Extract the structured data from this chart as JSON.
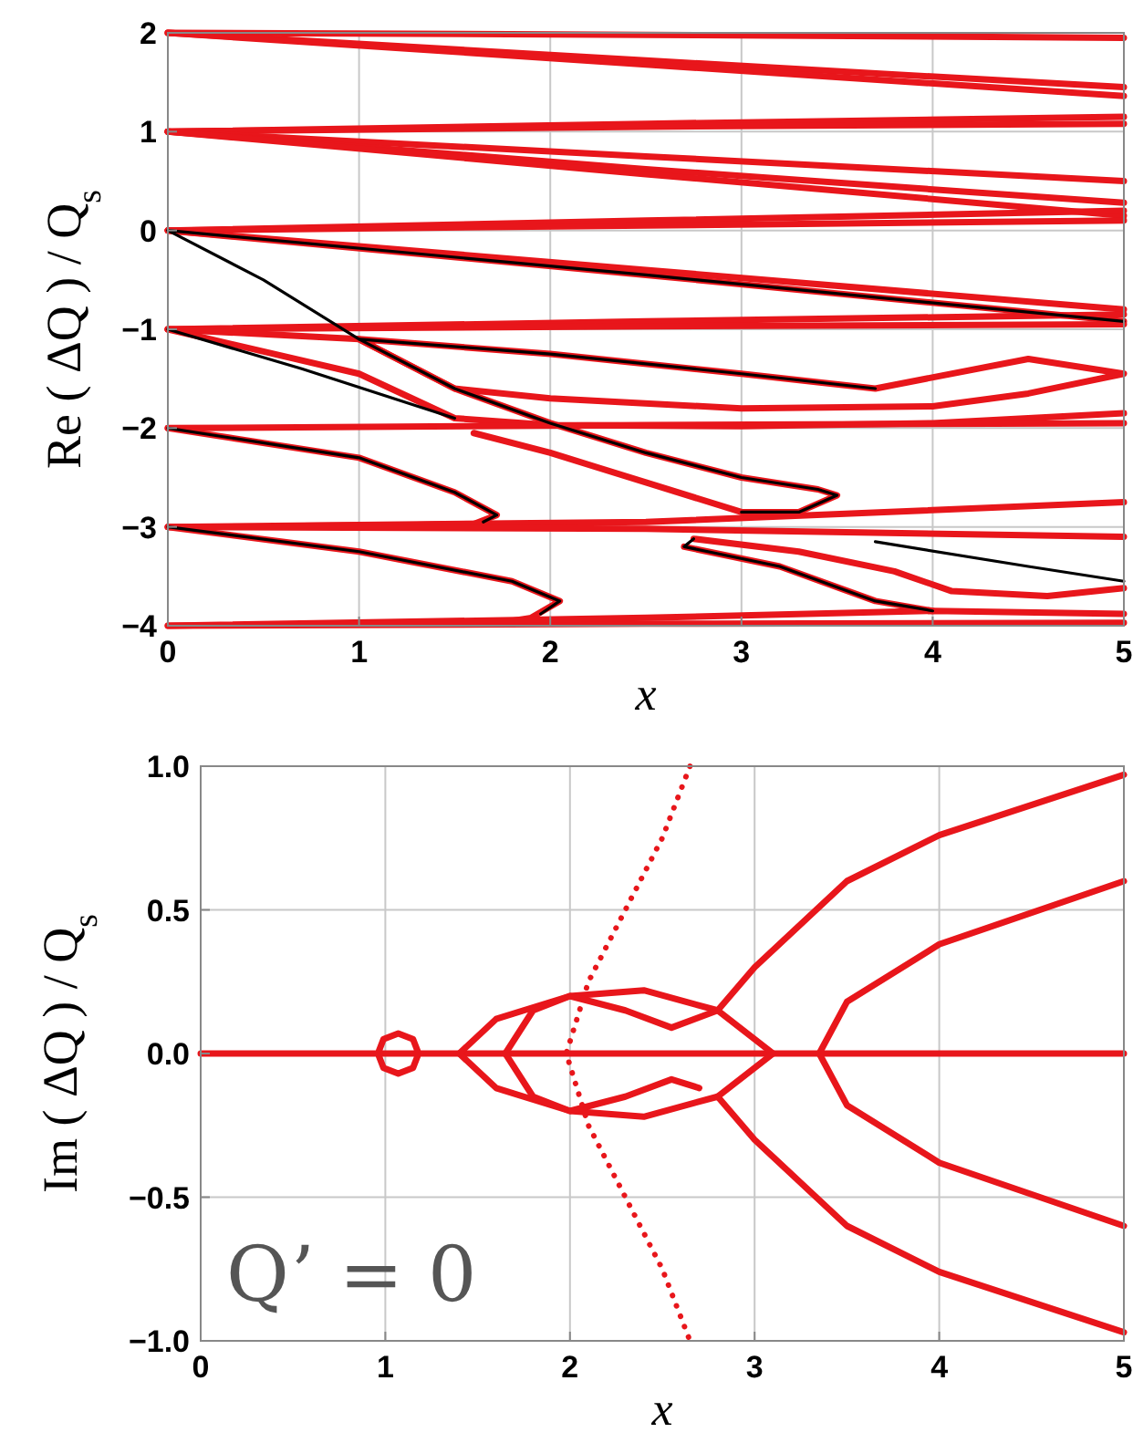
{
  "chart_data": [
    {
      "type": "line",
      "xlabel": "x",
      "ylabel": "Re ( ΔQ ) / Q$_{s}$",
      "xlim": [
        0,
        5
      ],
      "ylim": [
        -4,
        2
      ],
      "xticks": [
        0,
        1,
        2,
        3,
        4,
        5
      ],
      "yticks": [
        -4,
        -3,
        -2,
        -1,
        0,
        1,
        2
      ],
      "grid": true,
      "marker": "none",
      "series": [
        {
          "color": "#e8161b",
          "x": [
            0,
            2.5,
            5
          ],
          "values": [
            2,
            1.98,
            1.95
          ]
        },
        {
          "color": "#e8161b",
          "x": [
            0,
            2.5,
            5
          ],
          "values": [
            2,
            1.72,
            1.45
          ]
        },
        {
          "color": "#e8161b",
          "x": [
            0,
            2.5,
            5
          ],
          "values": [
            2,
            1.68,
            1.36
          ]
        },
        {
          "color": "#e8161b",
          "x": [
            0,
            2.5,
            5
          ],
          "values": [
            1,
            1.08,
            1.15
          ]
        },
        {
          "color": "#e8161b",
          "x": [
            0,
            2.5,
            5
          ],
          "values": [
            1,
            1.05,
            1.08
          ]
        },
        {
          "color": "#e8161b",
          "x": [
            0,
            2.5,
            5
          ],
          "values": [
            1,
            0.75,
            0.5
          ]
        },
        {
          "color": "#e8161b",
          "x": [
            0,
            2.5,
            5
          ],
          "values": [
            1,
            0.62,
            0.28
          ]
        },
        {
          "color": "#e8161b",
          "x": [
            0,
            2.5,
            5
          ],
          "values": [
            1,
            0.57,
            0.15
          ]
        },
        {
          "color": "#e8161b",
          "x": [
            0,
            2.5,
            5
          ],
          "values": [
            0,
            0.1,
            0.2
          ]
        },
        {
          "color": "#e8161b",
          "x": [
            0,
            2.5,
            5
          ],
          "values": [
            0,
            0.05,
            0.1
          ]
        },
        {
          "color": "#e8161b",
          "x": [
            0,
            2.5,
            5
          ],
          "values": [
            0,
            -0.4,
            -0.8
          ]
        },
        {
          "color": "#e8161b",
          "x": [
            0,
            2.5,
            5
          ],
          "values": [
            0,
            -0.45,
            -0.92
          ]
        },
        {
          "color": "#e8161b",
          "x": [
            0,
            2.5,
            5
          ],
          "values": [
            -1,
            -0.92,
            -0.85
          ]
        },
        {
          "color": "#e8161b",
          "x": [
            0,
            2.5,
            5
          ],
          "values": [
            -1,
            -0.97,
            -0.95
          ]
        },
        {
          "color": "#e8161b",
          "x": [
            0,
            1,
            2,
            3,
            3.7,
            4.5,
            5,
            4.5,
            4,
            3,
            2,
            1.5,
            1
          ],
          "values": [
            -1,
            -1.1,
            -1.25,
            -1.45,
            -1.6,
            -1.3,
            -1.45,
            -1.65,
            -1.78,
            -1.8,
            -1.7,
            -1.6,
            -1.1
          ]
        },
        {
          "color": "#e8161b",
          "x": [
            0,
            1,
            1.5,
            2,
            3,
            4,
            5
          ],
          "values": [
            -1,
            -1.45,
            -1.9,
            -1.97,
            -1.98,
            -1.95,
            -1.85
          ]
        },
        {
          "color": "#e8161b",
          "x": [
            0,
            2.5,
            5
          ],
          "values": [
            -2,
            -1.97,
            -1.95
          ]
        },
        {
          "color": "#e8161b",
          "x": [
            1,
            1.5,
            2,
            2.5,
            3,
            3.4,
            3.5,
            3.3,
            3,
            2.5,
            2,
            1.6
          ],
          "values": [
            -1.1,
            -1.6,
            -1.95,
            -2.25,
            -2.5,
            -2.62,
            -2.68,
            -2.85,
            -2.85,
            -2.55,
            -2.25,
            -2.05
          ]
        },
        {
          "color": "#e8161b",
          "x": [
            0,
            1,
            1.5,
            1.72,
            1.6,
            1.3,
            0.7
          ],
          "values": [
            -2,
            -2.3,
            -2.65,
            -2.88,
            -2.97,
            -2.98,
            -2.99
          ]
        },
        {
          "color": "#e8161b",
          "x": [
            0,
            2.5,
            5
          ],
          "values": [
            -3,
            -2.95,
            -2.75
          ]
        },
        {
          "color": "#e8161b",
          "x": [
            0,
            2.5,
            5
          ],
          "values": [
            -3,
            -3.02,
            -3.1
          ]
        },
        {
          "color": "#e8161b",
          "x": [
            0,
            1,
            1.8,
            2.05,
            1.9,
            1.7
          ],
          "values": [
            -3,
            -3.25,
            -3.55,
            -3.75,
            -3.92,
            -3.98
          ]
        },
        {
          "color": "#e8161b",
          "x": [
            0,
            2.5,
            5
          ],
          "values": [
            -4,
            -3.98,
            -3.97
          ]
        },
        {
          "color": "#e8161b",
          "x": [
            0,
            2.5,
            4,
            5
          ],
          "values": [
            -4,
            -3.92,
            -3.85,
            -3.88
          ]
        },
        {
          "color": "#e8161b",
          "x": [
            2.75,
            3.3,
            3.8,
            4.1,
            4.6,
            5
          ],
          "values": [
            -3.12,
            -3.25,
            -3.45,
            -3.65,
            -3.7,
            -3.62
          ]
        },
        {
          "color": "#e8161b",
          "x": [
            2.7,
            3.2,
            3.7,
            4
          ],
          "values": [
            -3.2,
            -3.4,
            -3.75,
            -3.85
          ]
        },
        {
          "color": "#000000",
          "x": [
            0,
            0.5,
            1,
            1.5,
            2,
            2.5,
            3,
            3.4,
            3.5,
            3.3,
            3
          ],
          "values": [
            0,
            -0.5,
            -1.1,
            -1.6,
            -1.95,
            -2.25,
            -2.5,
            -2.62,
            -2.68,
            -2.85,
            -2.85
          ]
        },
        {
          "color": "#000000",
          "x": [
            0,
            0.7,
            1.5
          ],
          "values": [
            -1,
            -1.4,
            -1.9
          ]
        },
        {
          "color": "#000000",
          "x": [
            0,
            1,
            1.5,
            1.72,
            1.65
          ],
          "values": [
            -2,
            -2.3,
            -2.65,
            -2.88,
            -2.95
          ]
        },
        {
          "color": "#000000",
          "x": [
            0,
            1,
            1.8,
            2.05,
            1.95
          ],
          "values": [
            -3,
            -3.25,
            -3.55,
            -3.75,
            -3.88
          ]
        },
        {
          "color": "#000000",
          "x": [
            2.75,
            2.7,
            3.2,
            3.7,
            4
          ],
          "values": [
            -3.12,
            -3.2,
            -3.4,
            -3.75,
            -3.85
          ]
        },
        {
          "color": "#000000",
          "x": [
            1,
            2,
            3,
            3.7
          ],
          "values": [
            -1.1,
            -1.25,
            -1.45,
            -1.6
          ]
        },
        {
          "color": "#000000",
          "x": [
            3.7,
            4.5,
            5
          ],
          "values": [
            -3.15,
            -3.4,
            -3.55
          ]
        },
        {
          "color": "#000000",
          "x": [
            0,
            2.5,
            5
          ],
          "values": [
            0,
            -0.45,
            -0.92
          ]
        }
      ]
    },
    {
      "type": "line",
      "xlabel": "x",
      "ylabel": "Im ( ΔQ ) / Q$_{s}$",
      "xlim": [
        0,
        5
      ],
      "ylim": [
        -1,
        1
      ],
      "xticks": [
        0,
        1,
        2,
        3,
        4,
        5
      ],
      "yticks": [
        {
          "value": -1,
          "label": "−1.0"
        },
        {
          "value": -0.5,
          "label": "−0.5"
        },
        {
          "value": 0,
          "label": "0.0"
        },
        {
          "value": 0.5,
          "label": "0.5"
        },
        {
          "value": 1,
          "label": "1.0"
        }
      ],
      "grid": true,
      "marker": "none",
      "annotations": [
        "Q’ = 0"
      ],
      "series": [
        {
          "color": "#e8161b",
          "x": [
            0,
            0.96,
            0.99,
            1.07,
            1.15,
            1.18,
            1.15,
            1.07,
            0.99,
            0.96,
            5
          ],
          "values": [
            0,
            0,
            0.05,
            0.07,
            0.05,
            0,
            -0.05,
            -0.07,
            -0.05,
            0,
            0
          ]
        },
        {
          "color": "#e8161b",
          "x": [
            5,
            4,
            3.5,
            3,
            2.8,
            2.4,
            2,
            1.6,
            1.4,
            1.6,
            2,
            2.4,
            2.8,
            3,
            3.5,
            4,
            5
          ],
          "values": [
            0.97,
            0.76,
            0.6,
            0.3,
            0.15,
            0.22,
            0.2,
            0.12,
            0,
            -0.12,
            -0.2,
            -0.22,
            -0.15,
            -0.3,
            -0.6,
            -0.76,
            -0.97
          ]
        },
        {
          "color": "#e8161b",
          "x": [
            2.8,
            3.1,
            2.8,
            2.55,
            2.3,
            2,
            1.8,
            1.65,
            1.8,
            2,
            2.3,
            2.55,
            2.7
          ],
          "values": [
            -0.15,
            0,
            0.15,
            0.09,
            0.15,
            0.2,
            0.15,
            0,
            -0.15,
            -0.2,
            -0.15,
            -0.09,
            -0.12
          ]
        },
        {
          "color": "#e8161b",
          "x": [
            5,
            4,
            3.5,
            3.35,
            3.5,
            4,
            5
          ],
          "values": [
            0.6,
            0.38,
            0.18,
            0,
            -0.18,
            -0.38,
            -0.6
          ]
        },
        {
          "color": "#e8161b",
          "line_style": "dotted",
          "x": [
            2.65,
            2.5,
            2.3,
            2.1,
            1.98,
            2.1,
            2.3,
            2.5,
            2.65
          ],
          "values": [
            1,
            0.75,
            0.5,
            0.25,
            0,
            -0.25,
            -0.5,
            -0.75,
            -1
          ]
        }
      ]
    }
  ]
}
